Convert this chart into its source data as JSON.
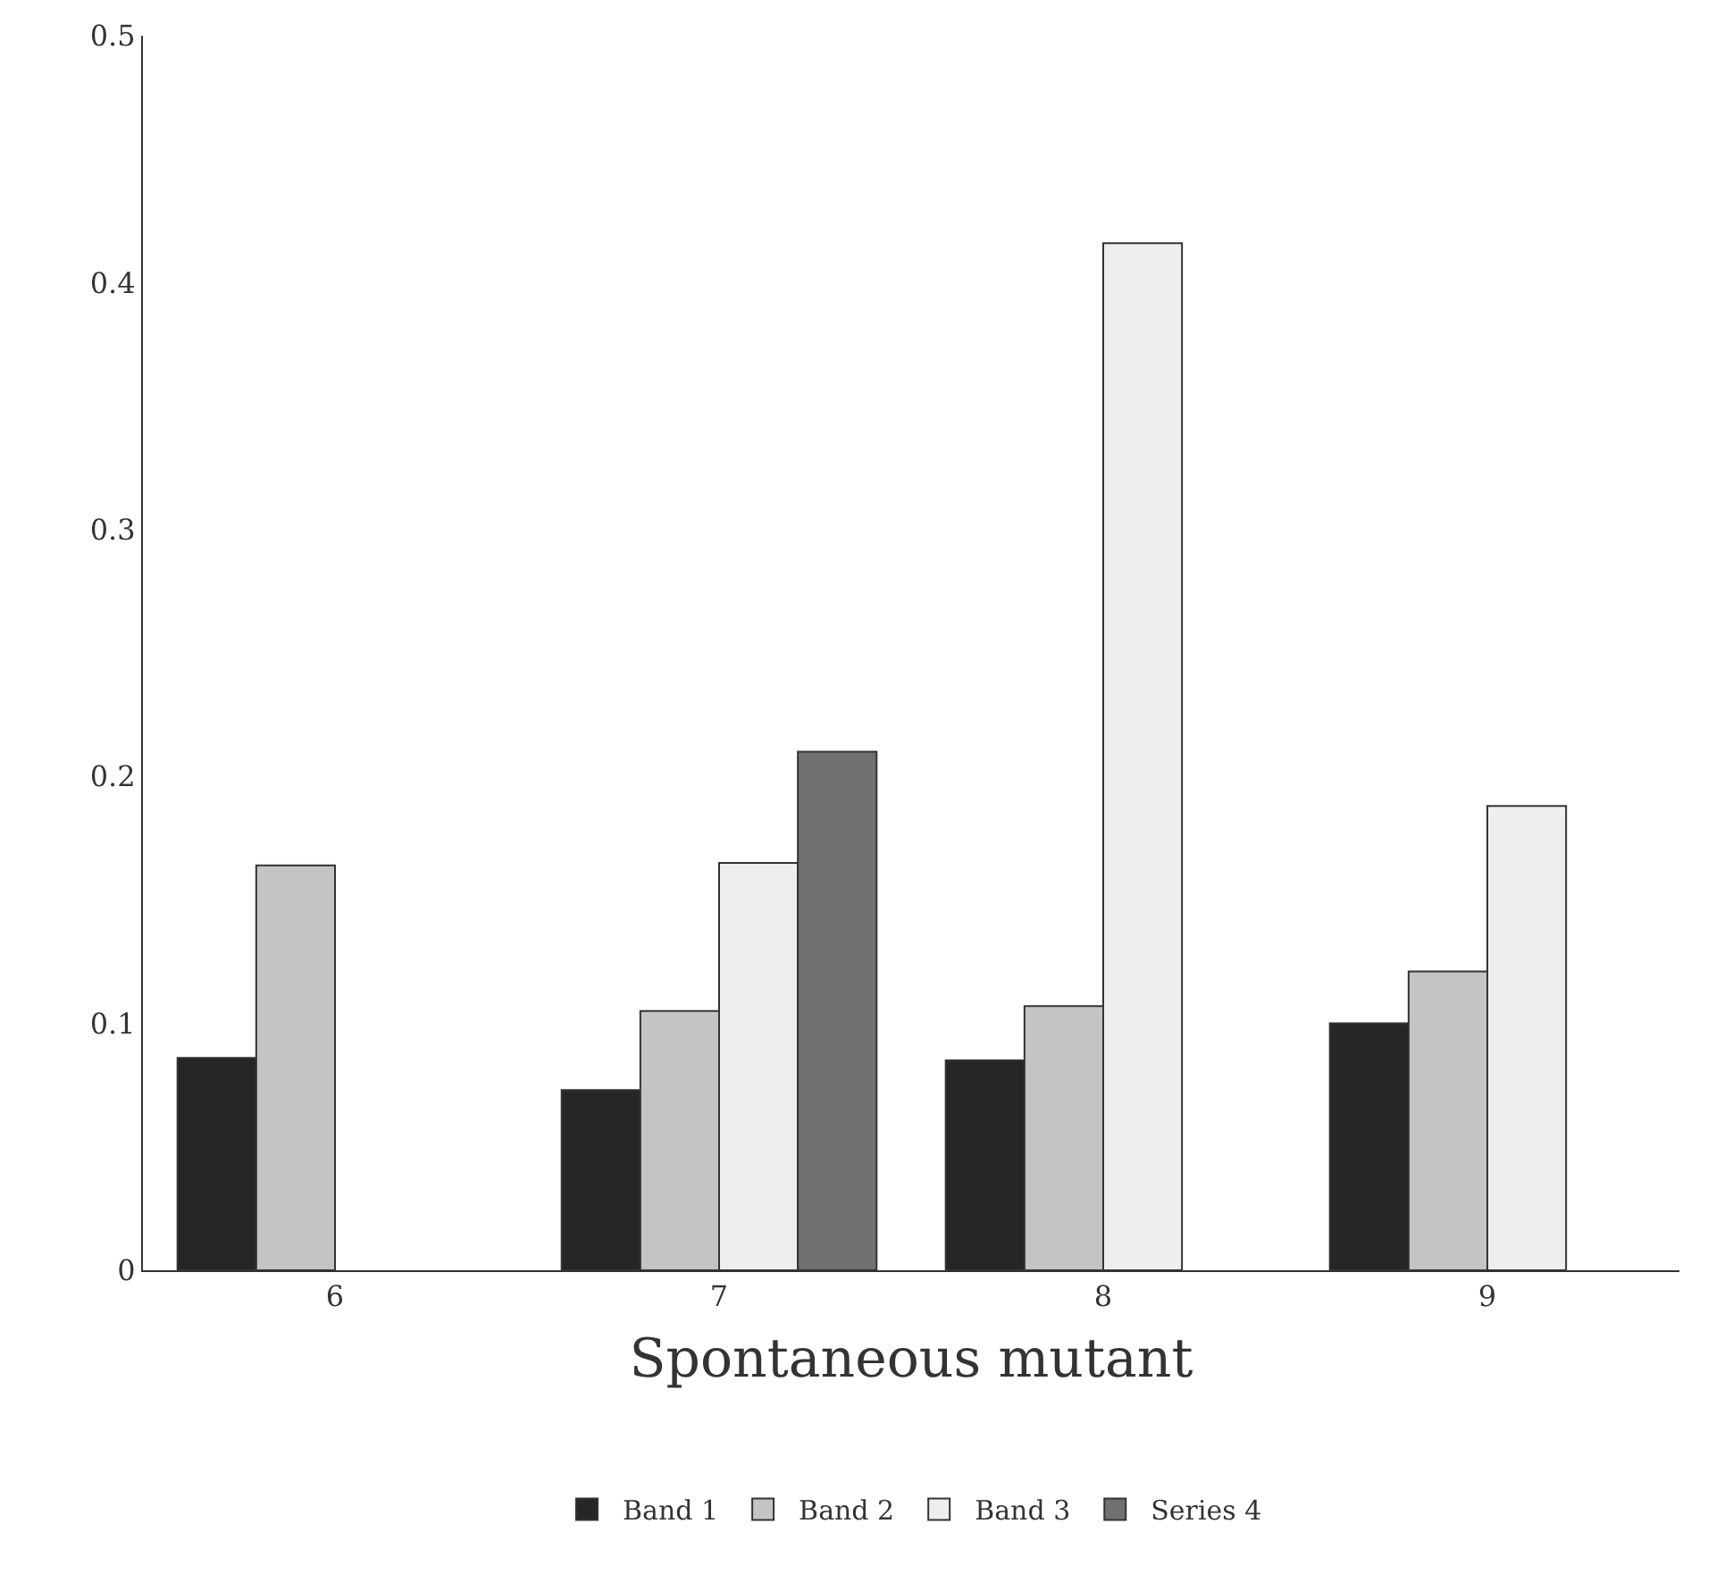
{
  "chart_data": {
    "type": "bar",
    "xlabel": "Spontaneous mutant",
    "categories": [
      "6",
      "7",
      "8",
      "9"
    ],
    "series": [
      {
        "name": "Band 1",
        "color": "#262626",
        "values": [
          0.086,
          0.073,
          0.085,
          0.1
        ]
      },
      {
        "name": "Band 2",
        "color": "#c4c4c4",
        "values": [
          0.164,
          0.105,
          0.107,
          0.121
        ]
      },
      {
        "name": "Band 3",
        "color": "#eeeeee",
        "values": [
          null,
          0.165,
          0.416,
          0.188
        ]
      },
      {
        "name": "Series 4",
        "color": "#707070",
        "values": [
          null,
          0.21,
          null,
          null
        ]
      }
    ],
    "ylim": [
      0,
      0.5
    ],
    "yticks": [
      0,
      0.1,
      0.2,
      0.3,
      0.4,
      0.5
    ],
    "legend": "bottom"
  }
}
